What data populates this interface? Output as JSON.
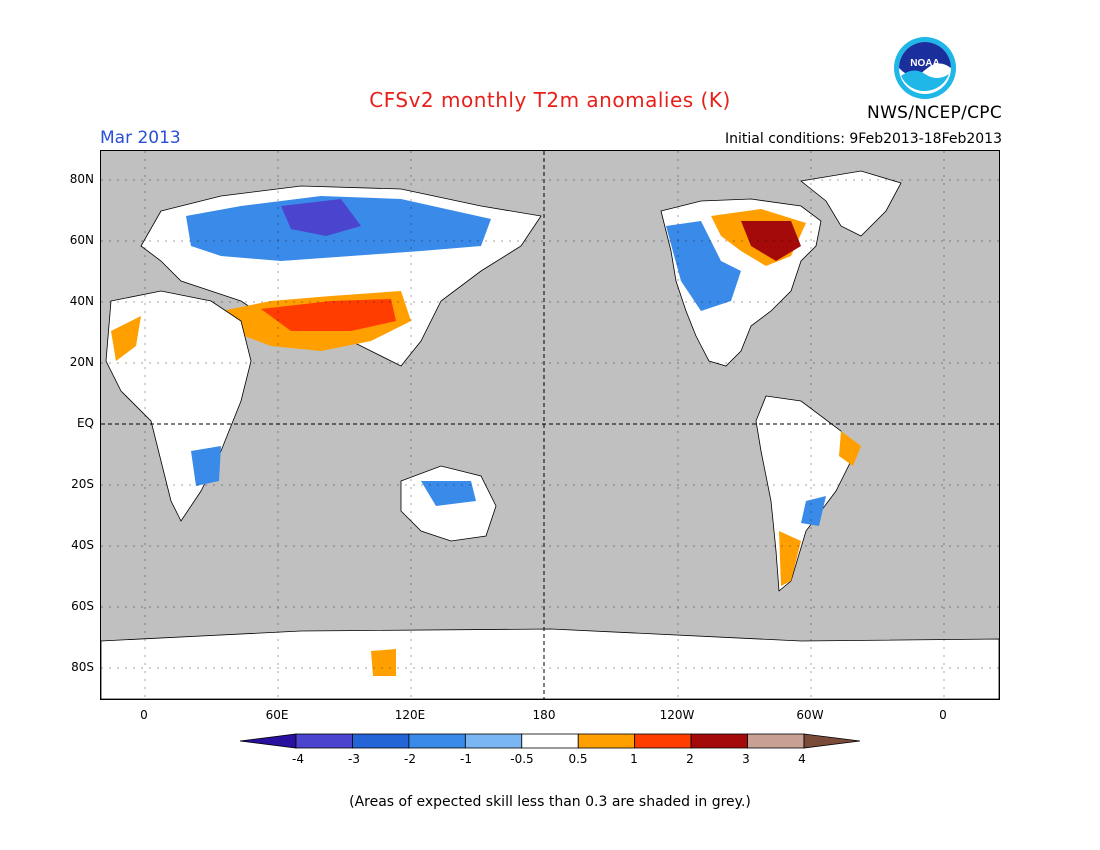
{
  "header": {
    "title": "CFSv2 monthly T2m anomalies (K)",
    "month": "Mar 2013",
    "org": "NWS/NCEP/CPC",
    "init_conditions": "Initial conditions: 9Feb2013-18Feb2013",
    "logo_text": "NOAA"
  },
  "map": {
    "lat_labels": [
      "80N",
      "60N",
      "40N",
      "20N",
      "EQ",
      "20S",
      "40S",
      "60S",
      "80S"
    ],
    "lon_labels": [
      "0",
      "60E",
      "120E",
      "180",
      "120W",
      "60W",
      "0"
    ],
    "ocean_color": "#c0c0c0"
  },
  "colorbar": {
    "labels": [
      "-4",
      "-3",
      "-2",
      "-1",
      "-0.5",
      "0.5",
      "1",
      "2",
      "3",
      "4"
    ],
    "colors": [
      "#2a109e",
      "#4b44cf",
      "#2365d6",
      "#3a8be9",
      "#7ab6f2",
      "#ffffff",
      "#ff9f00",
      "#ff3d00",
      "#a50a0a",
      "#c8a094",
      "#7b4b3a"
    ]
  },
  "footer": {
    "note": "(Areas of expected skill less than 0.3 are shaded in grey.)"
  }
}
